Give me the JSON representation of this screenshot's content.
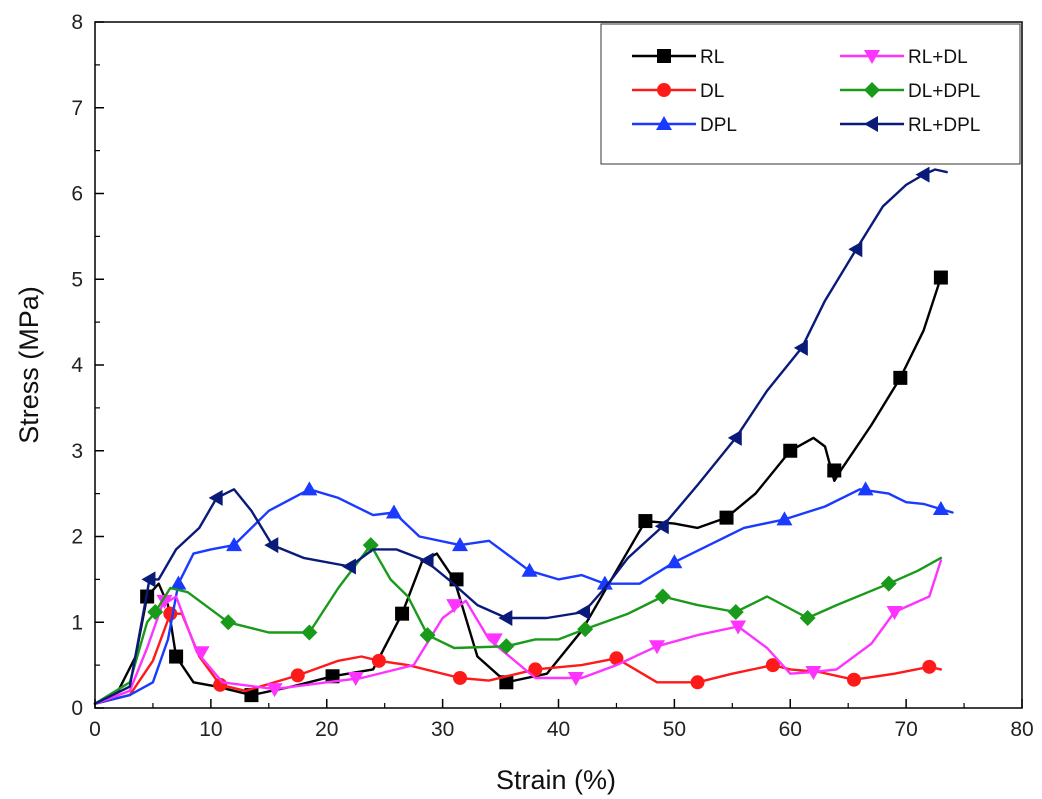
{
  "chart_data": {
    "type": "line",
    "xlabel": "Strain (%)",
    "ylabel": "Stress (MPa)",
    "xlim": [
      0,
      80
    ],
    "ylim": [
      0,
      8
    ],
    "x_ticks": [
      0,
      10,
      20,
      30,
      40,
      50,
      60,
      70,
      80
    ],
    "y_ticks": [
      0,
      1,
      2,
      3,
      4,
      5,
      6,
      7,
      8
    ],
    "grid": false,
    "legend_position": "top-right",
    "series": [
      {
        "name": "RL",
        "color": "#000000",
        "marker": "square",
        "x": [
          0,
          2,
          3.5,
          4.5,
          5.5,
          6.3,
          7,
          8.5,
          10.5,
          13.5,
          17,
          20.5,
          24,
          26.5,
          28.2,
          29.5,
          31,
          33,
          35.5,
          39,
          42,
          45,
          47.5,
          50,
          52,
          54.5,
          57,
          60,
          62,
          63,
          63.8,
          64.5,
          67,
          69.5,
          71.5,
          73
        ],
        "y": [
          0.05,
          0.2,
          0.6,
          1.3,
          1.45,
          1.2,
          0.6,
          0.3,
          0.25,
          0.15,
          0.25,
          0.37,
          0.45,
          1.1,
          1.7,
          1.8,
          1.5,
          0.6,
          0.3,
          0.4,
          0.9,
          1.6,
          2.18,
          2.15,
          2.1,
          2.22,
          2.5,
          3.0,
          3.15,
          3.05,
          2.65,
          2.8,
          3.3,
          3.85,
          4.4,
          5.02
        ],
        "markers_x": [
          4.5,
          7,
          13.5,
          20.5,
          26.5,
          31.2,
          35.5,
          47.5,
          54.5,
          60,
          63.8,
          69.5,
          73
        ],
        "markers_y": [
          1.3,
          0.6,
          0.15,
          0.37,
          1.1,
          1.5,
          0.3,
          2.18,
          2.22,
          3.0,
          2.77,
          3.85,
          5.02
        ]
      },
      {
        "name": "DL",
        "color": "#ff1a1a",
        "marker": "circle",
        "x": [
          0,
          3,
          5,
          6.5,
          7.5,
          9,
          10.8,
          13,
          17.5,
          21,
          23,
          24.5,
          27,
          31.5,
          34,
          38,
          42,
          45,
          48.5,
          52,
          55,
          58.5,
          60,
          62.5,
          65.5,
          69,
          72,
          73
        ],
        "y": [
          0.05,
          0.15,
          0.55,
          1.1,
          1.1,
          0.6,
          0.27,
          0.2,
          0.38,
          0.55,
          0.6,
          0.55,
          0.5,
          0.35,
          0.32,
          0.45,
          0.5,
          0.58,
          0.3,
          0.3,
          0.4,
          0.5,
          0.45,
          0.42,
          0.33,
          0.4,
          0.48,
          0.45
        ],
        "markers_x": [
          6.5,
          10.8,
          17.5,
          24.5,
          31.5,
          38,
          45,
          52,
          58.5,
          65.5,
          72
        ],
        "markers_y": [
          1.1,
          0.27,
          0.38,
          0.55,
          0.35,
          0.45,
          0.58,
          0.3,
          0.5,
          0.33,
          0.48
        ]
      },
      {
        "name": "DPL",
        "color": "#1a3aff",
        "marker": "triangle-up",
        "x": [
          0,
          3,
          5,
          6.3,
          7.2,
          8.5,
          10,
          12,
          15,
          18.5,
          21,
          24,
          25.8,
          28,
          31.5,
          34,
          37.5,
          40,
          42,
          44,
          47,
          50,
          53,
          56,
          59.5,
          63,
          66,
          68.5,
          70,
          71.5,
          73,
          74
        ],
        "y": [
          0.05,
          0.15,
          0.3,
          0.8,
          1.45,
          1.8,
          1.85,
          1.9,
          2.3,
          2.55,
          2.45,
          2.25,
          2.28,
          2.0,
          1.9,
          1.95,
          1.6,
          1.5,
          1.55,
          1.45,
          1.45,
          1.7,
          1.9,
          2.1,
          2.2,
          2.35,
          2.55,
          2.5,
          2.4,
          2.38,
          2.32,
          2.28
        ],
        "markers_x": [
          7.2,
          12,
          18.5,
          25.8,
          31.5,
          37.5,
          44,
          50,
          59.5,
          66.5,
          73
        ],
        "markers_y": [
          1.45,
          1.9,
          2.55,
          2.28,
          1.9,
          1.6,
          1.45,
          1.7,
          2.2,
          2.55,
          2.32
        ]
      },
      {
        "name": "RL+DL",
        "color": "#ff33ff",
        "marker": "triangle-down",
        "x": [
          0,
          3,
          4.5,
          5.8,
          7,
          8.8,
          11,
          15.5,
          20,
          23,
          27.5,
          30,
          32,
          34,
          38,
          42,
          45,
          48.5,
          52,
          55.5,
          58,
          60,
          62,
          64,
          67,
          69,
          72,
          73
        ],
        "y": [
          0.05,
          0.2,
          0.7,
          1.2,
          1.3,
          0.65,
          0.3,
          0.22,
          0.3,
          0.35,
          0.5,
          1.05,
          1.25,
          0.8,
          0.35,
          0.35,
          0.5,
          0.72,
          0.85,
          0.95,
          0.7,
          0.4,
          0.42,
          0.45,
          0.75,
          1.12,
          1.3,
          1.72
        ],
        "markers_x": [
          6,
          9.2,
          15.5,
          22.5,
          31,
          34.5,
          41.5,
          48.5,
          55.5,
          62,
          69
        ],
        "markers_y": [
          1.25,
          0.65,
          0.22,
          0.35,
          1.2,
          0.8,
          0.35,
          0.72,
          0.95,
          0.42,
          1.12
        ]
      },
      {
        "name": "DL+DPL",
        "color": "#1a9a1a",
        "marker": "diamond",
        "x": [
          0,
          3,
          4.5,
          5.2,
          6.5,
          8,
          11.5,
          15,
          18.5,
          21,
          23.8,
          25.5,
          27,
          28.7,
          31,
          35.5,
          38,
          40,
          42.3,
          46,
          49,
          52,
          55.3,
          58,
          61.5,
          64,
          68.5,
          71,
          73
        ],
        "y": [
          0.05,
          0.3,
          1.0,
          1.12,
          1.4,
          1.35,
          1.0,
          0.88,
          0.88,
          1.4,
          1.9,
          1.5,
          1.3,
          0.85,
          0.7,
          0.72,
          0.8,
          0.8,
          0.92,
          1.1,
          1.3,
          1.2,
          1.12,
          1.3,
          1.05,
          1.2,
          1.45,
          1.6,
          1.75
        ],
        "markers_x": [
          5.2,
          11.5,
          18.5,
          23.8,
          28.7,
          35.5,
          42.3,
          49,
          55.3,
          61.5,
          68.5
        ],
        "markers_y": [
          1.12,
          1.0,
          0.88,
          1.9,
          0.85,
          0.72,
          0.92,
          1.3,
          1.12,
          1.05,
          1.45
        ]
      },
      {
        "name": "RL+DPL",
        "color": "#0a1a78",
        "marker": "triangle-left",
        "x": [
          0,
          3,
          4.7,
          5.5,
          7,
          9,
          10.5,
          12,
          13.5,
          15.3,
          18,
          22,
          24,
          26,
          28.5,
          30.5,
          33,
          35.5,
          39,
          42.2,
          44,
          46,
          49,
          52,
          55.3,
          58,
          61,
          63,
          65.7,
          68,
          70,
          71.5,
          72.5,
          73.5
        ],
        "y": [
          0.05,
          0.25,
          1.5,
          1.5,
          1.85,
          2.1,
          2.45,
          2.55,
          2.3,
          1.9,
          1.75,
          1.65,
          1.85,
          1.85,
          1.72,
          1.5,
          1.2,
          1.05,
          1.05,
          1.12,
          1.4,
          1.75,
          2.12,
          2.6,
          3.15,
          3.7,
          4.2,
          4.75,
          5.35,
          5.85,
          6.1,
          6.22,
          6.28,
          6.25
        ],
        "markers_x": [
          4.7,
          10.5,
          15.3,
          22,
          28.7,
          35.5,
          42.2,
          49,
          55.3,
          61,
          65.7,
          71.5
        ],
        "markers_y": [
          1.5,
          2.45,
          1.9,
          1.65,
          1.72,
          1.05,
          1.12,
          2.12,
          3.15,
          4.2,
          5.35,
          6.22
        ]
      }
    ]
  }
}
